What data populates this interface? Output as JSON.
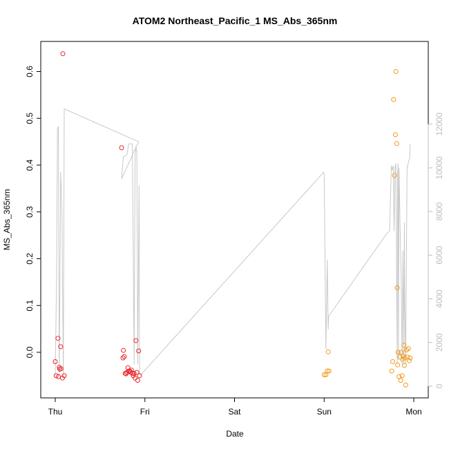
{
  "chart_data": {
    "type": "scatter",
    "title": "ATOM2 Northeast_Pacific_1 MS_Abs_365nm",
    "xlabel": "Date",
    "ylabel": "MS_Abs_365nm",
    "x_ticks": [
      "Thu",
      "Fri",
      "Sat",
      "Sun",
      "Mon"
    ],
    "x_range_days": [
      0,
      4
    ],
    "y_ticks": [
      "0.0",
      "0.1",
      "0.2",
      "0.3",
      "0.4",
      "0.5",
      "0.6"
    ],
    "ylim": [
      -0.095,
      0.655
    ],
    "y2_ticks": [
      "0",
      "2000",
      "4000",
      "6000",
      "8000",
      "10000",
      "12000"
    ],
    "y2lim": [
      -355,
      13200
    ],
    "grid": false,
    "colors": {
      "red_series": "#e8262b",
      "orange_series": "#f39a1e",
      "altitude_line": "#c8c8c8",
      "right_axis": "#bdbdbd"
    },
    "series": [
      {
        "color": "red",
        "points": [
          [
            0.0,
            -0.02
          ],
          [
            0.01,
            -0.05
          ],
          [
            0.03,
            0.03
          ],
          [
            0.035,
            -0.052
          ],
          [
            0.045,
            -0.032
          ],
          [
            0.05,
            -0.036
          ],
          [
            0.06,
            0.012
          ],
          [
            0.065,
            -0.035
          ],
          [
            0.08,
            -0.055
          ],
          [
            0.085,
            0.638
          ],
          [
            0.1,
            -0.05
          ],
          [
            0.74,
            0.437
          ],
          [
            0.755,
            -0.012
          ],
          [
            0.76,
            0.004
          ],
          [
            0.77,
            -0.009
          ],
          [
            0.78,
            -0.045
          ],
          [
            0.79,
            -0.046
          ],
          [
            0.8,
            -0.043
          ],
          [
            0.81,
            -0.033
          ],
          [
            0.82,
            -0.04
          ],
          [
            0.83,
            -0.04
          ],
          [
            0.84,
            -0.042
          ],
          [
            0.85,
            -0.038
          ],
          [
            0.86,
            -0.045
          ],
          [
            0.87,
            -0.05
          ],
          [
            0.88,
            -0.045
          ],
          [
            0.89,
            -0.055
          ],
          [
            0.9,
            0.025
          ],
          [
            0.91,
            -0.043
          ],
          [
            0.92,
            -0.06
          ],
          [
            0.93,
            0.003
          ],
          [
            0.94,
            -0.05
          ]
        ]
      },
      {
        "color": "orange",
        "points": [
          [
            3.0,
            -0.048
          ],
          [
            3.02,
            -0.048
          ],
          [
            3.035,
            -0.04
          ],
          [
            3.045,
            0.001
          ],
          [
            3.055,
            -0.04
          ],
          [
            3.755,
            -0.04
          ],
          [
            3.765,
            -0.02
          ],
          [
            3.775,
            0.54
          ],
          [
            3.785,
            0.378
          ],
          [
            3.795,
            0.465
          ],
          [
            3.8,
            0.6
          ],
          [
            3.81,
            0.446
          ],
          [
            3.815,
            0.138
          ],
          [
            3.82,
            -0.027
          ],
          [
            3.825,
            0.0
          ],
          [
            3.835,
            -0.052
          ],
          [
            3.845,
            -0.01
          ],
          [
            3.855,
            -0.06
          ],
          [
            3.86,
            0.0
          ],
          [
            3.87,
            -0.05
          ],
          [
            3.875,
            -0.015
          ],
          [
            3.88,
            -0.008
          ],
          [
            3.89,
            0.015
          ],
          [
            3.895,
            -0.028
          ],
          [
            3.9,
            -0.012
          ],
          [
            3.91,
            -0.07
          ],
          [
            3.92,
            0.005
          ],
          [
            3.93,
            -0.01
          ],
          [
            3.94,
            0.008
          ],
          [
            3.95,
            -0.018
          ],
          [
            3.96,
            -0.012
          ]
        ]
      }
    ],
    "altitude_line": [
      [
        0.0,
        500
      ],
      [
        0.015,
        5000
      ],
      [
        0.025,
        11800
      ],
      [
        0.035,
        11900
      ],
      [
        0.045,
        500
      ],
      [
        0.06,
        9800
      ],
      [
        0.075,
        8000
      ],
      [
        0.09,
        500
      ],
      [
        0.1,
        12700
      ],
      [
        0.93,
        11200
      ],
      [
        0.74,
        9500
      ],
      [
        0.76,
        10500
      ],
      [
        0.8,
        10600
      ],
      [
        0.82,
        11100
      ],
      [
        0.86,
        11100
      ],
      [
        0.88,
        1000
      ],
      [
        0.89,
        10500
      ],
      [
        0.9,
        11000
      ],
      [
        0.91,
        10700
      ],
      [
        0.92,
        1000
      ],
      [
        0.935,
        9200
      ],
      [
        0.94,
        600
      ],
      [
        0.95,
        500
      ],
      [
        2.995,
        9800
      ],
      [
        3.0,
        9700
      ],
      [
        3.02,
        1700
      ],
      [
        3.035,
        5800
      ],
      [
        3.045,
        2600
      ],
      [
        3.05,
        3200
      ],
      [
        3.7,
        7000
      ],
      [
        3.73,
        7100
      ],
      [
        3.75,
        10100
      ],
      [
        3.76,
        9900
      ],
      [
        3.77,
        10100
      ],
      [
        3.78,
        7100
      ],
      [
        3.785,
        8200
      ],
      [
        3.79,
        10000
      ],
      [
        3.8,
        10200
      ],
      [
        3.815,
        1000
      ],
      [
        3.82,
        9800
      ],
      [
        3.825,
        10200
      ],
      [
        3.83,
        1200
      ],
      [
        3.835,
        10000
      ],
      [
        3.84,
        9000
      ],
      [
        3.86,
        4800
      ],
      [
        3.87,
        1000
      ],
      [
        3.88,
        6200
      ],
      [
        3.89,
        1000
      ],
      [
        3.895,
        7500
      ],
      [
        3.9,
        3800
      ],
      [
        3.91,
        1000
      ],
      [
        3.925,
        10000
      ],
      [
        3.95,
        10400
      ],
      [
        3.955,
        10500
      ],
      [
        3.96,
        11100
      ]
    ]
  }
}
